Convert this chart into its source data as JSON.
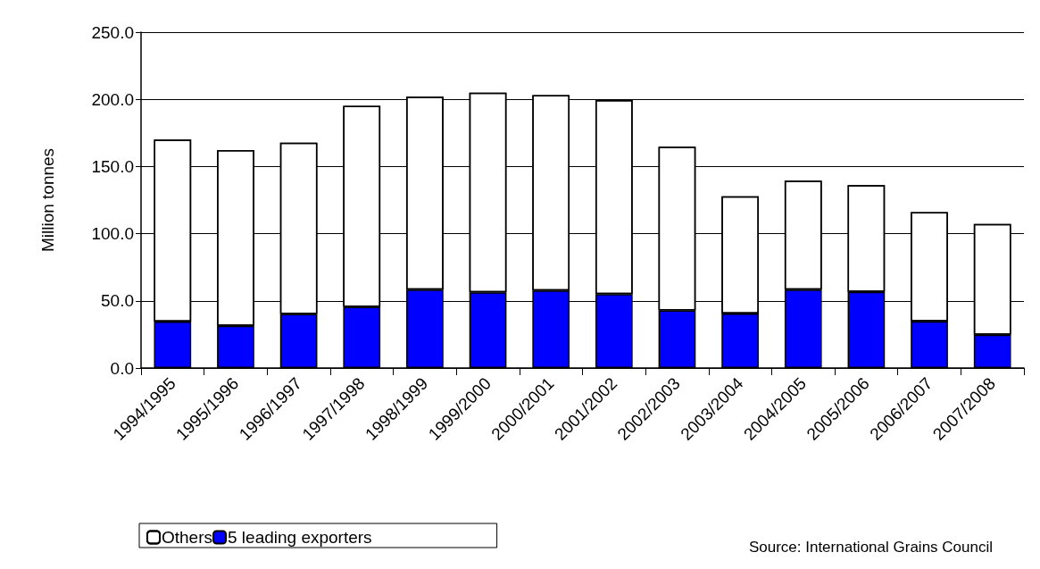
{
  "chart_data": {
    "type": "bar",
    "stacked": true,
    "ylabel": "Million tonnes",
    "categories": [
      "1994/1995",
      "1995/1996",
      "1996/1997",
      "1997/1998",
      "1998/1999",
      "1999/2000",
      "2000/2001",
      "2001/2002",
      "2002/2003",
      "2003/2004",
      "2004/2005",
      "2005/2006",
      "2006/2007",
      "2007/2008"
    ],
    "series": [
      {
        "name": "5 leading exporters",
        "color": "#0000ff",
        "values": [
          34.6,
          31.4,
          40.3,
          45.6,
          58.4,
          56.3,
          57.7,
          55.0,
          42.9,
          40.6,
          58.4,
          56.7,
          34.8,
          24.8
        ]
      },
      {
        "name": "Others",
        "color": "#ffffff",
        "values": [
          135.5,
          130.8,
          127.4,
          149.5,
          143.5,
          148.6,
          145.5,
          144.4,
          121.9,
          87.2,
          81.1,
          79.4,
          81.3,
          82.4
        ]
      }
    ],
    "ylim": [
      0,
      250
    ],
    "yticks": [
      {
        "value": 0,
        "label": "0.0"
      },
      {
        "value": 50,
        "label": "50.0"
      },
      {
        "value": 100,
        "label": "100.0"
      },
      {
        "value": 150,
        "label": "150.0"
      },
      {
        "value": 200,
        "label": "200.0"
      },
      {
        "value": 250,
        "label": "250.0"
      }
    ],
    "grid": "y",
    "legend": "bottom left",
    "annotations": [
      "Source: International Grains Council"
    ]
  }
}
